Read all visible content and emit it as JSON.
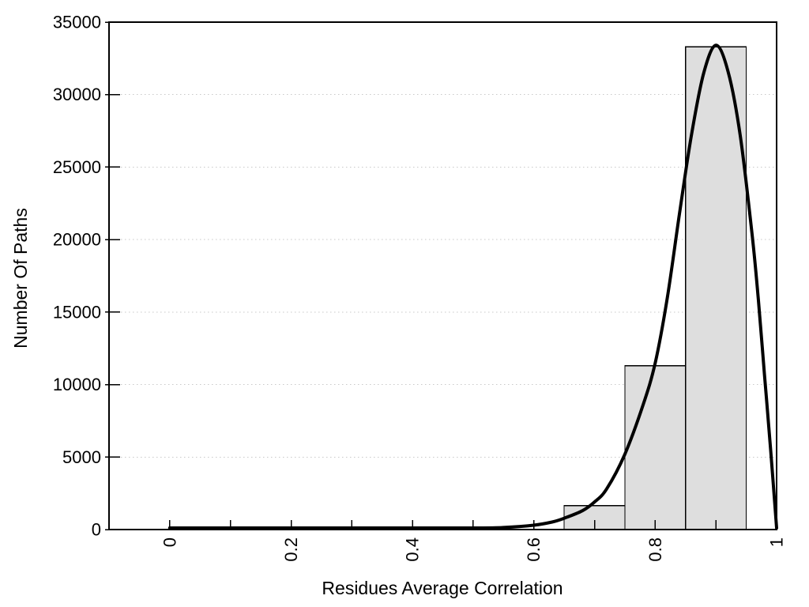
{
  "figure": {
    "background_color": "#ffffff",
    "text_color": "#000000"
  },
  "chart_data": {
    "type": "bar",
    "subtype": "histogram-with-fit-curve",
    "title": "",
    "xlabel": "Residues Average Correlation",
    "ylabel": "Number Of Paths",
    "xlim": [
      -0.1,
      1.0
    ],
    "ylim": [
      0,
      35000
    ],
    "x_major_ticks": [
      0,
      0.2,
      0.4,
      0.6,
      0.8,
      1
    ],
    "x_major_tick_labels": [
      "0",
      "0.2",
      "0.4",
      "0.6",
      "0.8",
      "1"
    ],
    "x_tick_step": 0.1,
    "x_tick_label_rotation_deg": -90,
    "y_ticks": [
      0,
      5000,
      10000,
      15000,
      20000,
      25000,
      30000,
      35000
    ],
    "y_tick_labels": [
      "0",
      "5000",
      "10000",
      "15000",
      "20000",
      "25000",
      "30000",
      "35000"
    ],
    "grid": {
      "horizontal": true,
      "vertical": false,
      "style": "dotted",
      "color": "#c8c8c8"
    },
    "legend": null,
    "bars": {
      "fill": "#dedede",
      "stroke": "#000000",
      "bin_width": 0.1,
      "items": [
        {
          "x_start": 0.65,
          "x_end": 0.75,
          "value": 1650
        },
        {
          "x_start": 0.75,
          "x_end": 0.85,
          "value": 11300
        },
        {
          "x_start": 0.85,
          "x_end": 0.95,
          "value": 33300
        }
      ]
    },
    "curve": {
      "name": "density-fit-curve",
      "color": "#000000",
      "points": [
        [
          0.0,
          0
        ],
        [
          0.05,
          0
        ],
        [
          0.1,
          0
        ],
        [
          0.15,
          0
        ],
        [
          0.2,
          0
        ],
        [
          0.25,
          0
        ],
        [
          0.3,
          0
        ],
        [
          0.35,
          5
        ],
        [
          0.4,
          15
        ],
        [
          0.45,
          35
        ],
        [
          0.5,
          70
        ],
        [
          0.55,
          140
        ],
        [
          0.6,
          300
        ],
        [
          0.63,
          520
        ],
        [
          0.65,
          780
        ],
        [
          0.68,
          1300
        ],
        [
          0.7,
          1900
        ],
        [
          0.72,
          2800
        ],
        [
          0.75,
          5200
        ],
        [
          0.78,
          8600
        ],
        [
          0.8,
          11500
        ],
        [
          0.82,
          16000
        ],
        [
          0.84,
          21800
        ],
        [
          0.86,
          27300
        ],
        [
          0.88,
          31500
        ],
        [
          0.9,
          33400
        ],
        [
          0.92,
          31600
        ],
        [
          0.94,
          27200
        ],
        [
          0.96,
          20200
        ],
        [
          0.97,
          15800
        ],
        [
          0.98,
          10700
        ],
        [
          0.99,
          5600
        ],
        [
          1.0,
          0
        ]
      ]
    }
  }
}
